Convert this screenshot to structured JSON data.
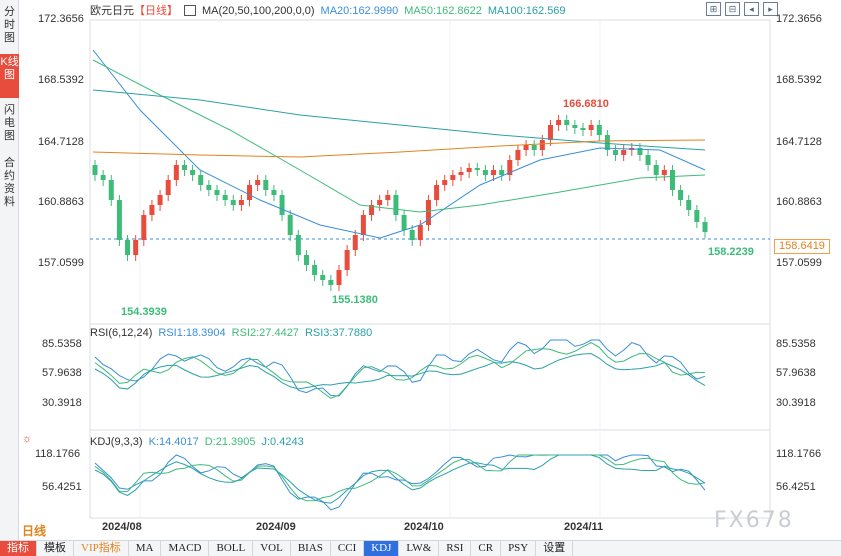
{
  "side_tabs": [
    {
      "label": "分时图",
      "active": false
    },
    {
      "label": "K线图",
      "active": true
    },
    {
      "label": "闪电图",
      "active": false
    },
    {
      "label": "合约资料",
      "active": false
    }
  ],
  "header": {
    "symbol": "欧元日元",
    "period_tag": "【日线】",
    "ma_label": "MA(20,50,100,200,0,0)",
    "ma20": "MA20:162.9990",
    "ma50": "MA50:162.8622",
    "ma100": "MA100:162.569"
  },
  "toolbar": [
    "zoom-in-icon",
    "zoom-out-icon",
    "scroll-left-icon",
    "scroll-right-icon"
  ],
  "price_axis": {
    "labels": [
      "172.3656",
      "168.5392",
      "164.7128",
      "160.8863",
      "157.0599"
    ],
    "current_price": "158.6419"
  },
  "annotations": {
    "high": "166.6810",
    "low1": "154.3939",
    "low2": "155.1380",
    "last_low": "158.2239"
  },
  "rsi": {
    "title": "RSI(6,12,24)",
    "rsi1": "RSI1:18.3904",
    "rsi2": "RSI2:27.4427",
    "rsi3": "RSI3:37.7880",
    "labels": [
      "85.5358",
      "57.9638",
      "30.3918"
    ]
  },
  "kdj": {
    "title": "KDJ(9,3,3)",
    "k": "K:14.4017",
    "d": "D:21.3905",
    "j": "J:0.4243",
    "labels": [
      "118.1766",
      "56.4251"
    ]
  },
  "dates": [
    "2024/08",
    "2024/09",
    "2024/10",
    "2024/11"
  ],
  "period_label": "日线",
  "watermark": "FX678",
  "indicator_tabs": [
    "指标",
    "模板",
    "VIP指标",
    "MA",
    "MACD",
    "BOLL",
    "VOL",
    "BIAS",
    "CCI",
    "KDJ",
    "LW&",
    "RSI",
    "CR",
    "PSY",
    "设置"
  ],
  "active_indicator": "KDJ",
  "colors": {
    "up": "#e74c3c",
    "down": "#3dbb79",
    "ma20": "#3a8fd8",
    "ma50": "#3dbb79",
    "ma100": "#2aa0a8",
    "ma200": "#e3821d",
    "accent": "#e74c3c"
  }
}
